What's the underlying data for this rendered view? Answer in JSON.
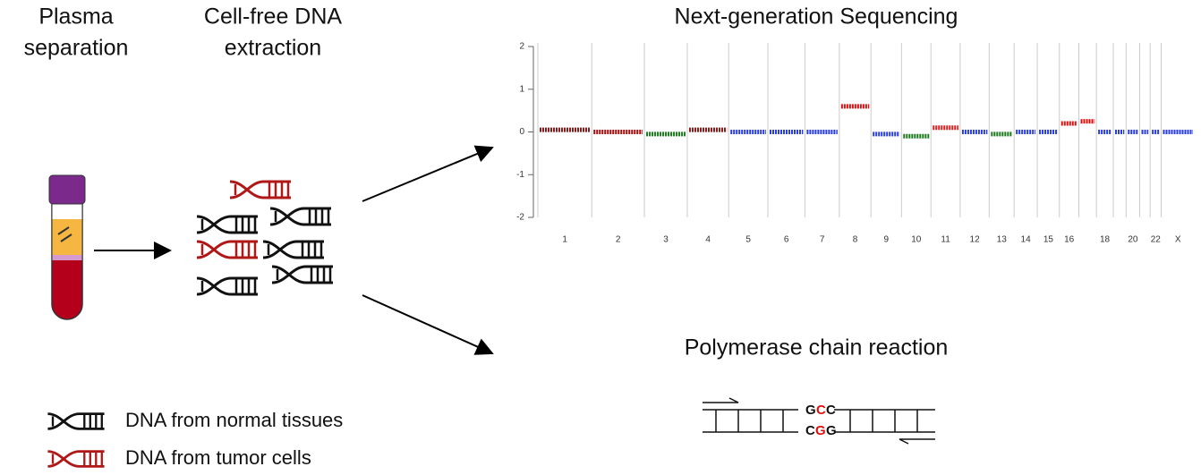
{
  "steps": {
    "plasma": [
      "Plasma",
      "separation"
    ],
    "extraction": [
      "Cell-free DNA",
      "extraction"
    ]
  },
  "legend": [
    "DNA from normal tissues",
    "DNA from tumor cells"
  ],
  "pcr": {
    "title": "Polymerase chain reaction",
    "top": [
      "G",
      "C",
      "C"
    ],
    "bottom": [
      "C",
      "G",
      "G"
    ]
  },
  "chart_data": {
    "type": "segment",
    "title": "Next-generation Sequencing",
    "categories": [
      "1",
      "2",
      "3",
      "4",
      "5",
      "6",
      "7",
      "8",
      "9",
      "10",
      "11",
      "12",
      "13",
      "14",
      "15",
      "16",
      null,
      "18",
      null,
      "20",
      null,
      "22",
      "X"
    ],
    "values": [
      0.05,
      0,
      -0.05,
      0.05,
      0,
      0,
      0,
      0.6,
      -0.05,
      -0.1,
      0.1,
      0,
      -0.05,
      0,
      0,
      0.2,
      0.25,
      0,
      0,
      0,
      0,
      0,
      0
    ],
    "colors": [
      "#8b1a1a",
      "#a01010",
      "#1e7a1e",
      "#8b1a1a",
      "#2a3ee0",
      "#2a3ee0",
      "#2a3ee0",
      "#e01010",
      "#2a3ee0",
      "#1e7a1e",
      "#e02020",
      "#2a3ee0",
      "#1e7a1e",
      "#2a3ee0",
      "#2a3ee0",
      "#e01010",
      "#e01010",
      "#2a3ee0",
      "#2a3ee0",
      "#2a3ee0",
      "#2a3ee0",
      "#2a3ee0",
      "#2a3ee0"
    ],
    "ylim": [
      -2,
      2
    ],
    "yticks": [
      -2,
      -1,
      0,
      1,
      2
    ]
  }
}
